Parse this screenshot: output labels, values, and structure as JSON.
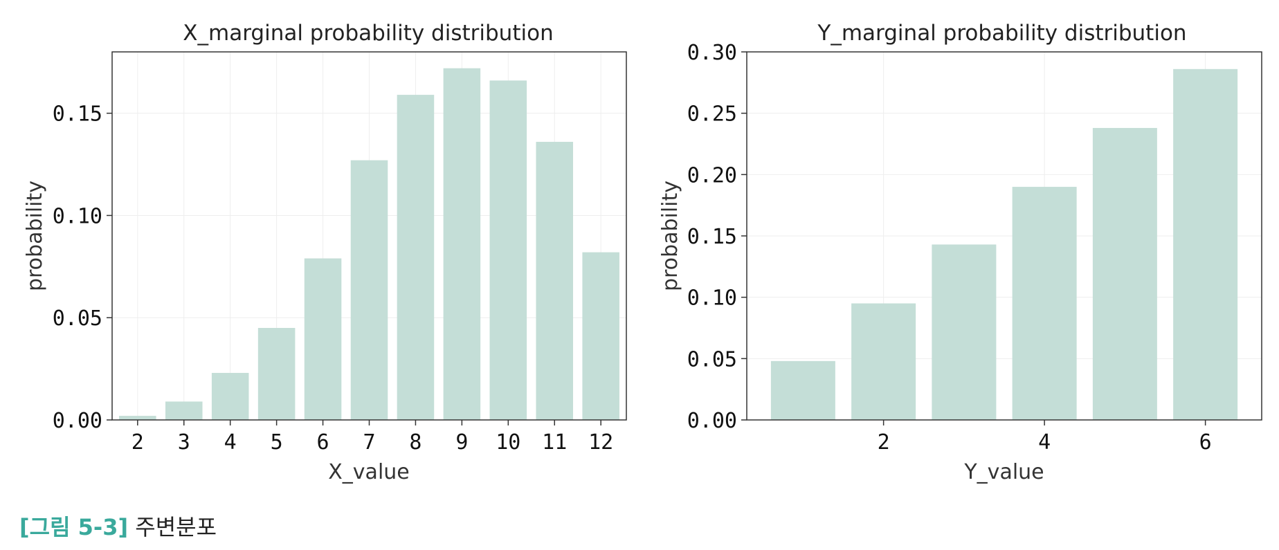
{
  "chart_data": [
    {
      "type": "bar",
      "title": "X_marginal probability distribution",
      "xlabel": "X_value",
      "ylabel": "probability",
      "categories": [
        "2",
        "3",
        "4",
        "5",
        "6",
        "7",
        "8",
        "9",
        "10",
        "11",
        "12"
      ],
      "x": [
        2,
        3,
        4,
        5,
        6,
        7,
        8,
        9,
        10,
        11,
        12
      ],
      "values": [
        0.002,
        0.009,
        0.023,
        0.045,
        0.079,
        0.127,
        0.159,
        0.172,
        0.166,
        0.136,
        0.082
      ],
      "xlim": [
        1.45,
        12.55
      ],
      "ylim": [
        0,
        0.18
      ],
      "xticks": [
        2,
        3,
        4,
        5,
        6,
        7,
        8,
        9,
        10,
        11,
        12
      ],
      "yticks": [
        0.0,
        0.05,
        0.1,
        0.15
      ],
      "ytick_labels": [
        "0.00",
        "0.05",
        "0.10",
        "0.15"
      ],
      "grid": true,
      "color": "#c4ded7"
    },
    {
      "type": "bar",
      "title": "Y_marginal probability distribution",
      "xlabel": "Y_value",
      "ylabel": "probability",
      "categories": [
        "1",
        "2",
        "3",
        "4",
        "5",
        "6"
      ],
      "x": [
        1,
        2,
        3,
        4,
        5,
        6
      ],
      "values": [
        0.048,
        0.095,
        0.143,
        0.19,
        0.238,
        0.286
      ],
      "xlim": [
        0.3,
        6.7
      ],
      "ylim": [
        0,
        0.3
      ],
      "xticks": [
        2,
        4,
        6
      ],
      "yticks": [
        0.0,
        0.05,
        0.1,
        0.15,
        0.2,
        0.25,
        0.3
      ],
      "ytick_labels": [
        "0.00",
        "0.05",
        "0.10",
        "0.15",
        "0.20",
        "0.25",
        "0.30"
      ],
      "grid": true,
      "color": "#c4ded7"
    }
  ],
  "caption": {
    "tag": "[그림 5-3]",
    "text": "주변분포"
  }
}
